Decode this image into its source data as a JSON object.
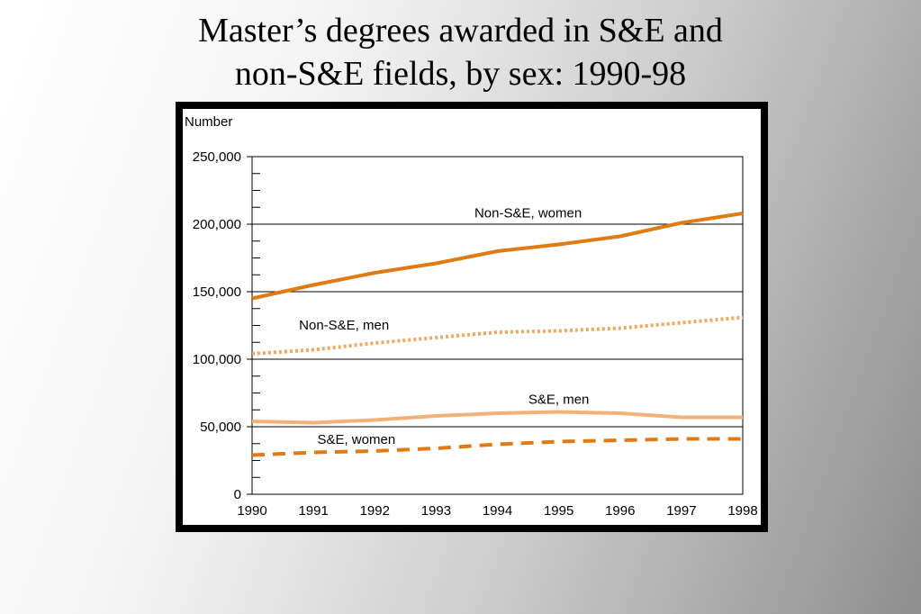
{
  "slide": {
    "title_line1": "Master’s degrees awarded in S&E and",
    "title_line2": "non-S&E fields, by sex: 1990-98"
  },
  "chart_data": {
    "type": "line",
    "title": "Master’s degrees awarded in S&E and non-S&E fields, by sex: 1990-98",
    "ylabel": "Number",
    "xlabel": "",
    "x": [
      1990,
      1991,
      1992,
      1993,
      1994,
      1995,
      1996,
      1997,
      1998
    ],
    "x_tick_labels": [
      "1990",
      "1991",
      "1992",
      "1993",
      "1994",
      "1995",
      "1996",
      "1997",
      "1998"
    ],
    "ylim": [
      0,
      250000
    ],
    "y_ticks": [
      0,
      50000,
      100000,
      150000,
      200000,
      250000
    ],
    "y_tick_labels": [
      "0",
      "50,000",
      "100,000",
      "150,000",
      "200,000",
      "250,000"
    ],
    "grid": "horizontal major lines",
    "legend": "inline labels",
    "series": [
      {
        "name": "Non-S&E, women",
        "values": [
          145000,
          155000,
          164000,
          171000,
          180000,
          185000,
          191000,
          201000,
          208000
        ],
        "color": "#e07a12",
        "style": "solid",
        "label_at": [
          1994.5,
          205000
        ]
      },
      {
        "name": "Non-S&E, men",
        "values": [
          104000,
          107000,
          112000,
          116000,
          120000,
          121000,
          123000,
          127000,
          131000
        ],
        "color": "#f0a860",
        "style": "dotted",
        "label_at": [
          1991.5,
          122000
        ]
      },
      {
        "name": "S&E, men",
        "values": [
          54000,
          53000,
          55000,
          58000,
          60000,
          61000,
          60000,
          57000,
          57000
        ],
        "color": "#f2b277",
        "style": "solid",
        "label_at": [
          1995.0,
          67000
        ]
      },
      {
        "name": "S&E, women",
        "values": [
          29000,
          31000,
          32000,
          34000,
          37000,
          39000,
          40000,
          41000,
          41000
        ],
        "color": "#e07a12",
        "style": "dashed",
        "label_at": [
          1991.7,
          37500
        ]
      }
    ]
  }
}
